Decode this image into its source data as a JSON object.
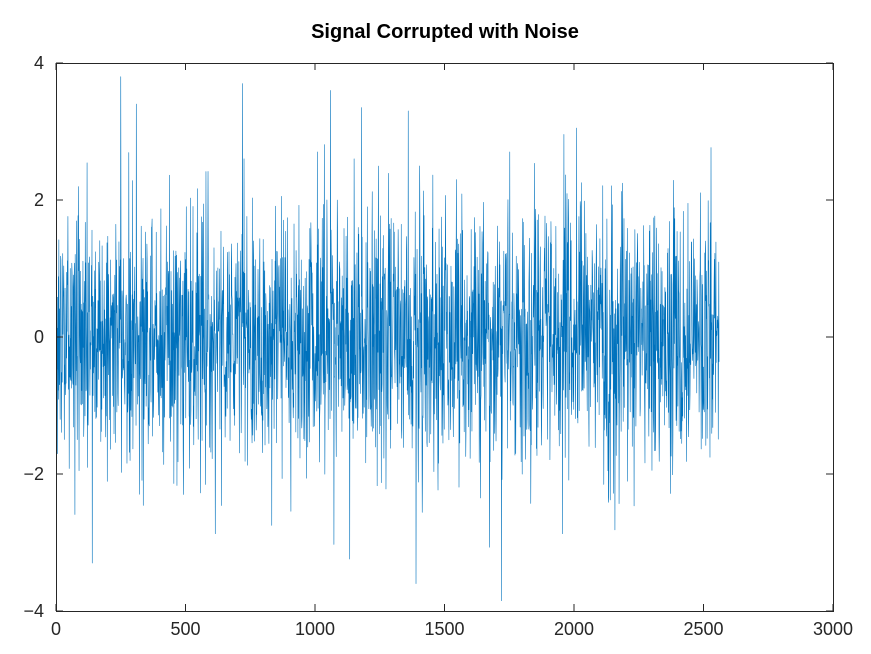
{
  "chart_data": {
    "type": "line",
    "title": "Signal Corrupted with Noise",
    "xlabel": "",
    "ylabel": "",
    "xlim": [
      0,
      3000
    ],
    "ylim": [
      -4,
      4
    ],
    "xticks": [
      0,
      500,
      1000,
      1500,
      2000,
      2500,
      3000
    ],
    "yticks": [
      -4,
      -2,
      0,
      2,
      4
    ],
    "xtick_labels": [
      "0",
      "500",
      "1000",
      "1500",
      "2000",
      "2500",
      "3000"
    ],
    "ytick_labels": [
      "−4",
      "−2",
      "0",
      "2",
      "4"
    ],
    "grid": false,
    "box": true,
    "series": [
      {
        "color": "#0072BD",
        "n_points": 2560,
        "x_start": 1,
        "x_end": 2560,
        "description": "dense noisy signal oscillating around 0, mostly within ±2, occasional excursions to about ±3.8",
        "extremes": [
          {
            "x": 250,
            "y": 3.8
          },
          {
            "x": 720,
            "y": 3.7
          },
          {
            "x": 1060,
            "y": 3.6
          },
          {
            "x": 1720,
            "y": -3.85
          },
          {
            "x": 1390,
            "y": -3.6
          },
          {
            "x": 140,
            "y": -3.3
          },
          {
            "x": 2010,
            "y": 3.05
          },
          {
            "x": 310,
            "y": 3.4
          },
          {
            "x": 1180,
            "y": 3.35
          },
          {
            "x": 1360,
            "y": 3.3
          }
        ]
      }
    ]
  }
}
